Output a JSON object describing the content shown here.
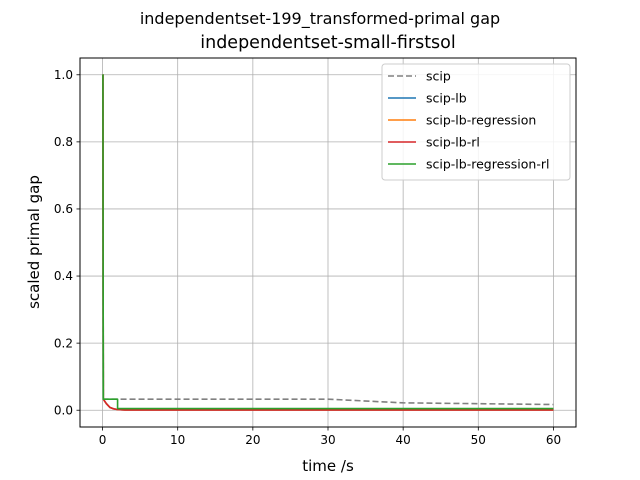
{
  "chart_data": {
    "type": "line",
    "suptitle": "independentset-199_transformed-primal gap",
    "title": "independentset-small-firstsol",
    "xlabel": "time /s",
    "ylabel": "scaled primal gap",
    "xlim": [
      -3,
      63
    ],
    "ylim": [
      -0.05,
      1.05
    ],
    "xticks": [
      0,
      10,
      20,
      30,
      40,
      50,
      60
    ],
    "yticks": [
      0.0,
      0.2,
      0.4,
      0.6,
      0.8,
      1.0
    ],
    "xtick_labels": [
      "0",
      "10",
      "20",
      "30",
      "40",
      "50",
      "60"
    ],
    "ytick_labels": [
      "0.0",
      "0.2",
      "0.4",
      "0.6",
      "0.8",
      "1.0"
    ],
    "grid": true,
    "legend_position": "top-right",
    "series": [
      {
        "name": "scip",
        "color": "#808080",
        "dash": "dashed",
        "x": [
          0,
          0.05,
          0.1,
          2,
          30,
          40,
          60
        ],
        "y": [
          1.0,
          1.0,
          0.033,
          0.033,
          0.033,
          0.022,
          0.017
        ]
      },
      {
        "name": "scip-lb",
        "color": "#1f77b4",
        "dash": "solid",
        "x": [
          0,
          0.05,
          0.1,
          0.5,
          1,
          1.5,
          2,
          3,
          60
        ],
        "y": [
          1.0,
          1.0,
          0.033,
          0.02,
          0.008,
          0.004,
          0.002,
          0.001,
          0.001
        ]
      },
      {
        "name": "scip-lb-regression",
        "color": "#ff7f0e",
        "dash": "solid",
        "x": [
          0,
          0.05,
          0.1,
          0.5,
          1,
          1.5,
          2,
          3,
          60
        ],
        "y": [
          1.0,
          1.0,
          0.033,
          0.02,
          0.008,
          0.004,
          0.002,
          0.001,
          0.001
        ]
      },
      {
        "name": "scip-lb-rl",
        "color": "#d62728",
        "dash": "solid",
        "x": [
          0,
          0.05,
          0.1,
          0.5,
          1,
          1.5,
          2,
          3,
          60
        ],
        "y": [
          1.0,
          1.0,
          0.033,
          0.02,
          0.008,
          0.004,
          0.002,
          0.001,
          0.001
        ]
      },
      {
        "name": "scip-lb-regression-rl",
        "color": "#2ca02c",
        "dash": "solid",
        "x": [
          0,
          0.05,
          0.1,
          2,
          2,
          60
        ],
        "y": [
          1.0,
          1.0,
          0.033,
          0.033,
          0.005,
          0.005
        ]
      }
    ]
  }
}
